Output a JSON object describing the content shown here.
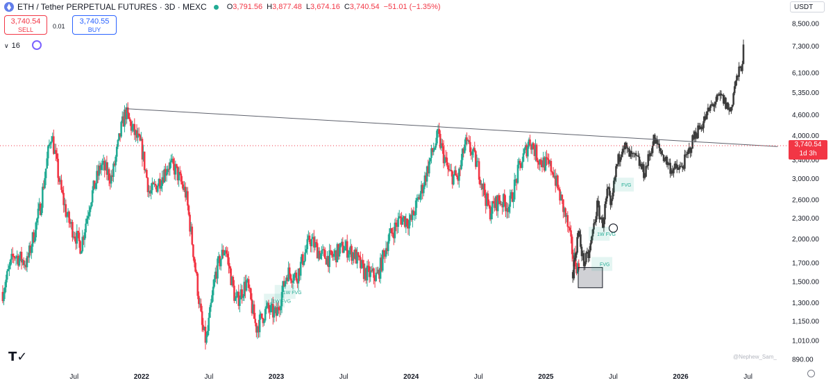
{
  "header": {
    "title": "ETH / Tether PERPETUAL FUTURES · 3D · MEXC",
    "ohlc": [
      {
        "k": "O",
        "v": "3,791.56"
      },
      {
        "k": "H",
        "v": "3,877.48"
      },
      {
        "k": "L",
        "v": "3,674.16"
      },
      {
        "k": "C",
        "v": "3,740.54"
      }
    ],
    "change": "−51.01 (−1.35%)"
  },
  "trade": {
    "sell_price": "3,740.54",
    "sell_label": "SELL",
    "spread": "0.01",
    "buy_price": "3,740.55",
    "buy_label": "BUY"
  },
  "indicators": {
    "count": "16"
  },
  "currency": "USDT",
  "last_price": {
    "value": "3,740.54",
    "countdown": "1d 3h"
  },
  "watermark": "@Nephew_Sam_",
  "colors": {
    "up": "#22ab94",
    "down": "#f23645",
    "projection": "#3c3c3c",
    "trendline": "#5d606b"
  },
  "chart_data": {
    "type": "candlestick",
    "y_scale": "log",
    "y_ticks": [
      "8,500.00",
      "7,300.00",
      "6,100.00",
      "5,350.00",
      "4,600.00",
      "4,000.00",
      "3,400.00",
      "3,000.00",
      "2,600.00",
      "2,300.00",
      "2,000.00",
      "1,700.00",
      "1,500.00",
      "1,300.00",
      "1,150.00",
      "1,010.00",
      "890.00"
    ],
    "y_tick_values": [
      8500,
      7300,
      6100,
      5350,
      4600,
      4000,
      3400,
      3000,
      2600,
      2300,
      2000,
      1700,
      1500,
      1300,
      1150,
      1010,
      890
    ],
    "x_ticks": [
      {
        "label": "Jul",
        "t": 2021.5,
        "bold": false
      },
      {
        "label": "2022",
        "t": 2022.0,
        "bold": true
      },
      {
        "label": "Jul",
        "t": 2022.5,
        "bold": false
      },
      {
        "label": "2023",
        "t": 2023.0,
        "bold": true
      },
      {
        "label": "Jul",
        "t": 2023.5,
        "bold": false
      },
      {
        "label": "2024",
        "t": 2024.0,
        "bold": true
      },
      {
        "label": "Jul",
        "t": 2024.5,
        "bold": false
      },
      {
        "label": "2025",
        "t": 2025.0,
        "bold": true
      },
      {
        "label": "Jul",
        "t": 2025.5,
        "bold": false
      },
      {
        "label": "2026",
        "t": 2026.0,
        "bold": true
      },
      {
        "label": "Jul",
        "t": 2026.5,
        "bold": false
      }
    ],
    "price_path": [
      [
        2020.97,
        1400
      ],
      [
        2021.05,
        1800
      ],
      [
        2021.15,
        1700
      ],
      [
        2021.25,
        2500
      ],
      [
        2021.33,
        4100
      ],
      [
        2021.4,
        2800
      ],
      [
        2021.45,
        2300
      ],
      [
        2021.55,
        1900
      ],
      [
        2021.62,
        2600
      ],
      [
        2021.7,
        3300
      ],
      [
        2021.78,
        3000
      ],
      [
        2021.85,
        4200
      ],
      [
        2021.88,
        4700
      ],
      [
        2021.93,
        4200
      ],
      [
        2022.0,
        3700
      ],
      [
        2022.06,
        2700
      ],
      [
        2022.12,
        2900
      ],
      [
        2022.2,
        3300
      ],
      [
        2022.25,
        3200
      ],
      [
        2022.33,
        2700
      ],
      [
        2022.38,
        1900
      ],
      [
        2022.45,
        1100
      ],
      [
        2022.48,
        1000
      ],
      [
        2022.55,
        1600
      ],
      [
        2022.62,
        1900
      ],
      [
        2022.7,
        1300
      ],
      [
        2022.78,
        1500
      ],
      [
        2022.85,
        1100
      ],
      [
        2022.93,
        1250
      ],
      [
        2023.0,
        1200
      ],
      [
        2023.08,
        1600
      ],
      [
        2023.15,
        1550
      ],
      [
        2023.25,
        2000
      ],
      [
        2023.33,
        1800
      ],
      [
        2023.4,
        1750
      ],
      [
        2023.5,
        1900
      ],
      [
        2023.58,
        1800
      ],
      [
        2023.65,
        1600
      ],
      [
        2023.75,
        1550
      ],
      [
        2023.83,
        2000
      ],
      [
        2023.92,
        2300
      ],
      [
        2024.0,
        2250
      ],
      [
        2024.08,
        2800
      ],
      [
        2024.15,
        3500
      ],
      [
        2024.2,
        4000
      ],
      [
        2024.28,
        3100
      ],
      [
        2024.35,
        3000
      ],
      [
        2024.4,
        3800
      ],
      [
        2024.45,
        3600
      ],
      [
        2024.5,
        3200
      ],
      [
        2024.58,
        2400
      ],
      [
        2024.65,
        2600
      ],
      [
        2024.73,
        2500
      ],
      [
        2024.8,
        3200
      ],
      [
        2024.88,
        3900
      ],
      [
        2024.95,
        3400
      ],
      [
        2025.0,
        3300
      ],
      [
        2025.05,
        3200
      ],
      [
        2025.1,
        2700
      ],
      [
        2025.15,
        2300
      ],
      [
        2025.2,
        1800
      ],
      [
        2025.25,
        1600
      ]
    ],
    "projection_path": [
      [
        2025.2,
        1600
      ],
      [
        2025.24,
        2100
      ],
      [
        2025.28,
        1700
      ],
      [
        2025.32,
        1800
      ],
      [
        2025.38,
        2500
      ],
      [
        2025.42,
        2200
      ],
      [
        2025.46,
        2800
      ],
      [
        2025.48,
        2400
      ],
      [
        2025.52,
        3200
      ],
      [
        2025.57,
        3800
      ],
      [
        2025.62,
        3500
      ],
      [
        2025.68,
        3400
      ],
      [
        2025.73,
        3100
      ],
      [
        2025.8,
        3900
      ],
      [
        2025.87,
        3500
      ],
      [
        2025.93,
        3200
      ],
      [
        2026.0,
        3200
      ],
      [
        2026.05,
        3500
      ],
      [
        2026.1,
        4000
      ],
      [
        2026.17,
        4400
      ],
      [
        2026.23,
        4900
      ],
      [
        2026.3,
        5200
      ],
      [
        2026.37,
        4700
      ],
      [
        2026.4,
        5600
      ],
      [
        2026.45,
        6400
      ],
      [
        2026.47,
        7300
      ]
    ],
    "trendline": {
      "from": [
        2021.88,
        4800
      ],
      "to": [
        2026.72,
        3720
      ]
    },
    "last_price_line": 3740.54,
    "boxes": [
      {
        "t0": 2025.24,
        "t1": 2025.42,
        "p0": 1440,
        "p1": 1650
      }
    ],
    "circle": {
      "t": 2025.5,
      "p": 2150
    },
    "fvg_labels": [
      {
        "text": "1W FVG",
        "t": 2023.05,
        "p": 1400
      },
      {
        "text": "1W FVG",
        "t": 2022.97,
        "p": 1320
      },
      {
        "text": "1W FVG",
        "t": 2025.38,
        "p": 2070
      },
      {
        "text": "FVG",
        "t": 2025.4,
        "p": 1690
      },
      {
        "text": "FVG",
        "t": 2025.56,
        "p": 2880
      }
    ]
  }
}
